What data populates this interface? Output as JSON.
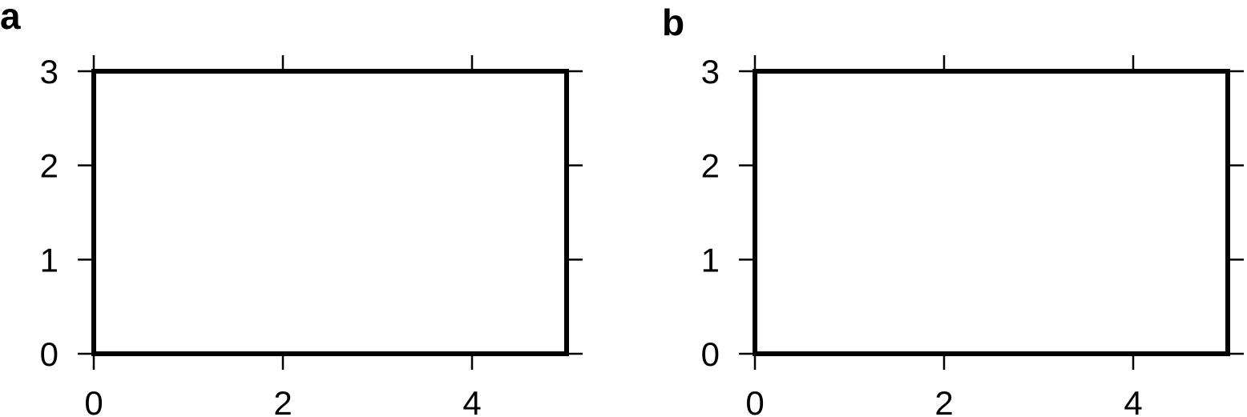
{
  "colors": {
    "frame": "#000000",
    "background": "#ffffff"
  },
  "chart_data": [
    {
      "type": "scatter",
      "panel_label": "a",
      "title": "",
      "xlabel": "",
      "ylabel": "",
      "xlim": [
        0,
        5
      ],
      "ylim": [
        0,
        3
      ],
      "x_ticks": [
        0,
        2,
        4
      ],
      "y_ticks": [
        0,
        1,
        2,
        3
      ],
      "x_tick_labels": [
        "0",
        "2",
        "4"
      ],
      "y_tick_labels": [
        "0",
        "1",
        "2",
        "3"
      ],
      "grid": false,
      "series": []
    },
    {
      "type": "scatter",
      "panel_label": "b",
      "title": "",
      "xlabel": "",
      "ylabel": "",
      "xlim": [
        0,
        5
      ],
      "ylim": [
        0,
        3
      ],
      "x_ticks": [
        0,
        2,
        4
      ],
      "y_ticks": [
        0,
        1,
        2,
        3
      ],
      "x_tick_labels": [
        "0",
        "2",
        "4"
      ],
      "y_tick_labels": [
        "0",
        "1",
        "2",
        "3"
      ],
      "grid": false,
      "series": []
    }
  ]
}
